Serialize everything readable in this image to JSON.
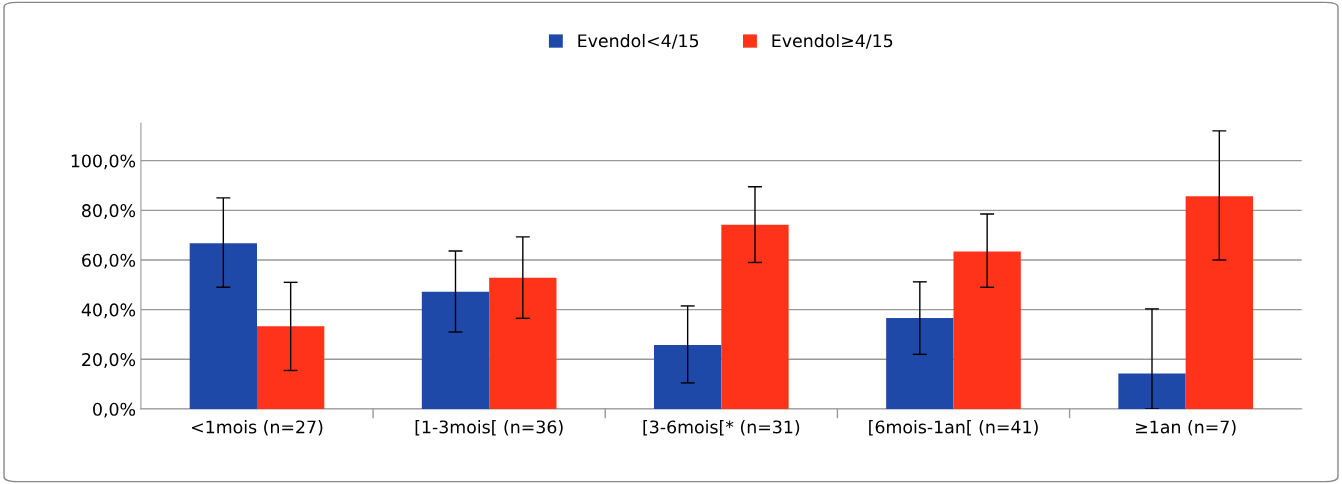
{
  "chart_data": {
    "type": "bar",
    "categories": [
      "<1mois (n=27)",
      "[1-3mois[ (n=36)",
      "[3-6mois[* (n=31)",
      "[6mois-1an[ (n=41)",
      "≥1an (n=7)"
    ],
    "series": [
      {
        "name": "Evendol<4/15",
        "color": "#1f49a8",
        "values": [
          66.7,
          47.2,
          25.8,
          36.6,
          14.3
        ],
        "errors": [
          [
            49,
            85
          ],
          [
            31,
            63.6
          ],
          [
            10.5,
            41.5
          ],
          [
            22,
            51.2
          ],
          [
            0,
            40.3
          ]
        ]
      },
      {
        "name": "Evendol≥4/15",
        "color": "#ff3319",
        "values": [
          33.3,
          52.8,
          74.2,
          63.4,
          85.7
        ],
        "errors": [
          [
            15.5,
            51
          ],
          [
            36.5,
            69.3
          ],
          [
            59,
            89.5
          ],
          [
            49,
            78.5
          ],
          [
            60,
            112
          ]
        ]
      }
    ],
    "ylim": [
      0,
      115
    ],
    "yticks": [
      {
        "value": 0,
        "label": "0,0%"
      },
      {
        "value": 20,
        "label": "20,0%"
      },
      {
        "value": 40,
        "label": "40,0%"
      },
      {
        "value": 60,
        "label": "60,0%"
      },
      {
        "value": 80,
        "label": "80,0%"
      },
      {
        "value": 100,
        "label": "100,0%"
      }
    ],
    "grid": "y",
    "legend": "top"
  }
}
